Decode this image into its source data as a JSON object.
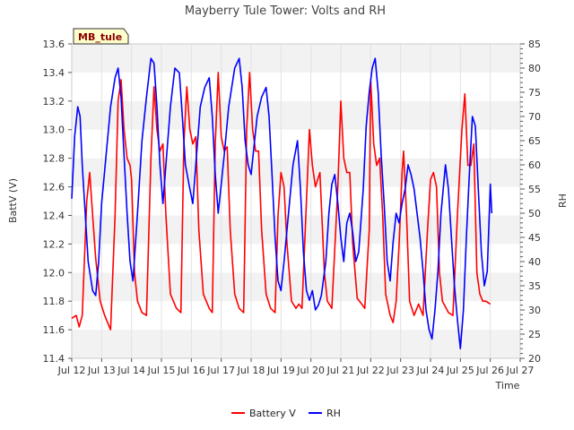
{
  "chart_data": {
    "type": "line",
    "title": "Mayberry Tule Tower: Volts and RH",
    "xlabel": "Time",
    "ylabel": "BattV (V)",
    "y2label": "RH",
    "station_label": "MB_tule",
    "xlim": [
      12,
      27
    ],
    "ylim": [
      11.4,
      13.6
    ],
    "y2lim": [
      20,
      85
    ],
    "x_ticks": [
      {
        "value": 12,
        "label": "Jul 12"
      },
      {
        "value": 13,
        "label": "Jul 13"
      },
      {
        "value": 14,
        "label": "Jul 14"
      },
      {
        "value": 15,
        "label": "Jul 15"
      },
      {
        "value": 16,
        "label": "Jul 16"
      },
      {
        "value": 17,
        "label": "Jul 17"
      },
      {
        "value": 18,
        "label": "Jul 18"
      },
      {
        "value": 19,
        "label": "Jul 19"
      },
      {
        "value": 20,
        "label": "Jul 20"
      },
      {
        "value": 21,
        "label": "Jul 21"
      },
      {
        "value": 22,
        "label": "Jul 22"
      },
      {
        "value": 23,
        "label": "Jul 23"
      },
      {
        "value": 24,
        "label": "Jul 24"
      },
      {
        "value": 25,
        "label": "Jul 25"
      },
      {
        "value": 26,
        "label": "Jul 26"
      },
      {
        "value": 27,
        "label": "Jul 27"
      }
    ],
    "y_ticks": [
      "11.4",
      "11.6",
      "11.8",
      "12.0",
      "12.2",
      "12.4",
      "12.6",
      "12.8",
      "13.0",
      "13.2",
      "13.4",
      "13.6"
    ],
    "y2_ticks": [
      "20",
      "25",
      "30",
      "35",
      "40",
      "45",
      "50",
      "55",
      "60",
      "65",
      "70",
      "75",
      "80",
      "85"
    ],
    "series": [
      {
        "name": "Battery V",
        "axis": "left",
        "color": "#ff0000",
        "points": [
          [
            12.0,
            11.68
          ],
          [
            12.15,
            11.7
          ],
          [
            12.25,
            11.62
          ],
          [
            12.35,
            11.7
          ],
          [
            12.5,
            12.5
          ],
          [
            12.6,
            12.7
          ],
          [
            12.7,
            12.4
          ],
          [
            12.8,
            12.1
          ],
          [
            12.95,
            11.8
          ],
          [
            13.1,
            11.7
          ],
          [
            13.2,
            11.65
          ],
          [
            13.3,
            11.6
          ],
          [
            13.45,
            12.4
          ],
          [
            13.55,
            13.2
          ],
          [
            13.65,
            13.35
          ],
          [
            13.75,
            13.0
          ],
          [
            13.85,
            12.8
          ],
          [
            13.95,
            12.75
          ],
          [
            14.0,
            12.65
          ],
          [
            14.1,
            12.0
          ],
          [
            14.2,
            11.8
          ],
          [
            14.35,
            11.72
          ],
          [
            14.5,
            11.7
          ],
          [
            14.65,
            12.8
          ],
          [
            14.75,
            13.3
          ],
          [
            14.85,
            13.0
          ],
          [
            14.95,
            12.85
          ],
          [
            15.05,
            12.9
          ],
          [
            15.15,
            12.4
          ],
          [
            15.3,
            11.85
          ],
          [
            15.5,
            11.75
          ],
          [
            15.65,
            11.72
          ],
          [
            15.75,
            12.9
          ],
          [
            15.85,
            13.3
          ],
          [
            15.95,
            13.0
          ],
          [
            16.05,
            12.9
          ],
          [
            16.15,
            12.95
          ],
          [
            16.25,
            12.3
          ],
          [
            16.4,
            11.85
          ],
          [
            16.6,
            11.75
          ],
          [
            16.7,
            11.72
          ],
          [
            16.8,
            12.9
          ],
          [
            16.9,
            13.4
          ],
          [
            17.0,
            12.95
          ],
          [
            17.1,
            12.85
          ],
          [
            17.2,
            12.88
          ],
          [
            17.3,
            12.3
          ],
          [
            17.45,
            11.85
          ],
          [
            17.6,
            11.75
          ],
          [
            17.75,
            11.72
          ],
          [
            17.85,
            13.0
          ],
          [
            17.95,
            13.4
          ],
          [
            18.05,
            13.0
          ],
          [
            18.15,
            12.85
          ],
          [
            18.25,
            12.85
          ],
          [
            18.35,
            12.3
          ],
          [
            18.5,
            11.85
          ],
          [
            18.65,
            11.75
          ],
          [
            18.8,
            11.72
          ],
          [
            18.9,
            12.4
          ],
          [
            19.0,
            12.7
          ],
          [
            19.1,
            12.6
          ],
          [
            19.2,
            12.2
          ],
          [
            19.35,
            11.8
          ],
          [
            19.5,
            11.75
          ],
          [
            19.6,
            11.78
          ],
          [
            19.7,
            11.75
          ],
          [
            19.85,
            12.5
          ],
          [
            19.95,
            13.0
          ],
          [
            20.05,
            12.75
          ],
          [
            20.15,
            12.6
          ],
          [
            20.3,
            12.7
          ],
          [
            20.45,
            12.0
          ],
          [
            20.55,
            11.8
          ],
          [
            20.7,
            11.75
          ],
          [
            20.9,
            12.6
          ],
          [
            21.0,
            13.2
          ],
          [
            21.1,
            12.8
          ],
          [
            21.2,
            12.7
          ],
          [
            21.3,
            12.7
          ],
          [
            21.4,
            12.2
          ],
          [
            21.55,
            11.82
          ],
          [
            21.7,
            11.78
          ],
          [
            21.8,
            11.75
          ],
          [
            21.95,
            12.3
          ],
          [
            22.0,
            13.35
          ],
          [
            22.1,
            12.9
          ],
          [
            22.2,
            12.75
          ],
          [
            22.3,
            12.8
          ],
          [
            22.4,
            12.4
          ],
          [
            22.5,
            11.85
          ],
          [
            22.65,
            11.7
          ],
          [
            22.75,
            11.65
          ],
          [
            22.85,
            11.8
          ],
          [
            22.95,
            12.2
          ],
          [
            23.05,
            12.7
          ],
          [
            23.1,
            12.85
          ],
          [
            23.2,
            12.4
          ],
          [
            23.3,
            11.8
          ],
          [
            23.45,
            11.7
          ],
          [
            23.6,
            11.78
          ],
          [
            23.75,
            11.7
          ],
          [
            23.9,
            12.3
          ],
          [
            24.0,
            12.65
          ],
          [
            24.1,
            12.7
          ],
          [
            24.2,
            12.6
          ],
          [
            24.3,
            12.0
          ],
          [
            24.4,
            11.8
          ],
          [
            24.6,
            11.72
          ],
          [
            24.75,
            11.7
          ],
          [
            24.9,
            12.4
          ],
          [
            25.05,
            13.0
          ],
          [
            25.15,
            13.25
          ],
          [
            25.25,
            12.75
          ],
          [
            25.35,
            12.75
          ],
          [
            25.45,
            12.9
          ],
          [
            25.55,
            12.0
          ],
          [
            25.65,
            11.85
          ],
          [
            25.75,
            11.8
          ],
          [
            25.85,
            11.8
          ],
          [
            26.0,
            11.78
          ]
        ]
      },
      {
        "name": "RH",
        "axis": "right",
        "color": "#0000ff",
        "points": [
          [
            12.0,
            53
          ],
          [
            12.1,
            66
          ],
          [
            12.2,
            72
          ],
          [
            12.28,
            70
          ],
          [
            12.35,
            60
          ],
          [
            12.45,
            50
          ],
          [
            12.55,
            40
          ],
          [
            12.7,
            34
          ],
          [
            12.8,
            33
          ],
          [
            12.9,
            40
          ],
          [
            13.0,
            52
          ],
          [
            13.15,
            62
          ],
          [
            13.3,
            72
          ],
          [
            13.45,
            78
          ],
          [
            13.55,
            80
          ],
          [
            13.65,
            74
          ],
          [
            13.75,
            62
          ],
          [
            13.85,
            50
          ],
          [
            13.95,
            40
          ],
          [
            14.05,
            36
          ],
          [
            14.2,
            50
          ],
          [
            14.35,
            65
          ],
          [
            14.5,
            74
          ],
          [
            14.65,
            82
          ],
          [
            14.75,
            81
          ],
          [
            14.85,
            72
          ],
          [
            14.95,
            60
          ],
          [
            15.05,
            52
          ],
          [
            15.15,
            60
          ],
          [
            15.3,
            72
          ],
          [
            15.45,
            80
          ],
          [
            15.6,
            79
          ],
          [
            15.7,
            70
          ],
          [
            15.8,
            60
          ],
          [
            15.95,
            55
          ],
          [
            16.05,
            52
          ],
          [
            16.15,
            60
          ],
          [
            16.3,
            72
          ],
          [
            16.45,
            76
          ],
          [
            16.6,
            78
          ],
          [
            16.7,
            70
          ],
          [
            16.8,
            58
          ],
          [
            16.9,
            50
          ],
          [
            17.0,
            56
          ],
          [
            17.1,
            62
          ],
          [
            17.25,
            72
          ],
          [
            17.45,
            80
          ],
          [
            17.6,
            82
          ],
          [
            17.7,
            76
          ],
          [
            17.8,
            65
          ],
          [
            17.9,
            60
          ],
          [
            18.0,
            58
          ],
          [
            18.1,
            64
          ],
          [
            18.2,
            70
          ],
          [
            18.35,
            74
          ],
          [
            18.5,
            76
          ],
          [
            18.6,
            70
          ],
          [
            18.7,
            58
          ],
          [
            18.8,
            45
          ],
          [
            18.9,
            36
          ],
          [
            19.0,
            34
          ],
          [
            19.1,
            40
          ],
          [
            19.25,
            50
          ],
          [
            19.4,
            60
          ],
          [
            19.55,
            65
          ],
          [
            19.65,
            55
          ],
          [
            19.75,
            42
          ],
          [
            19.85,
            34
          ],
          [
            19.95,
            32
          ],
          [
            20.05,
            34
          ],
          [
            20.15,
            30
          ],
          [
            20.25,
            31
          ],
          [
            20.35,
            33
          ],
          [
            20.5,
            40
          ],
          [
            20.6,
            50
          ],
          [
            20.7,
            56
          ],
          [
            20.8,
            58
          ],
          [
            20.9,
            52
          ],
          [
            21.0,
            45
          ],
          [
            21.1,
            40
          ],
          [
            21.2,
            48
          ],
          [
            21.3,
            50
          ],
          [
            21.4,
            46
          ],
          [
            21.5,
            40
          ],
          [
            21.6,
            42
          ],
          [
            21.75,
            55
          ],
          [
            21.85,
            68
          ],
          [
            21.95,
            75
          ],
          [
            22.05,
            80
          ],
          [
            22.15,
            82
          ],
          [
            22.25,
            75
          ],
          [
            22.35,
            62
          ],
          [
            22.45,
            52
          ],
          [
            22.55,
            40
          ],
          [
            22.65,
            36
          ],
          [
            22.75,
            44
          ],
          [
            22.85,
            50
          ],
          [
            22.95,
            48
          ],
          [
            23.05,
            52
          ],
          [
            23.15,
            55
          ],
          [
            23.25,
            60
          ],
          [
            23.35,
            58
          ],
          [
            23.45,
            55
          ],
          [
            23.55,
            50
          ],
          [
            23.65,
            45
          ],
          [
            23.75,
            38
          ],
          [
            23.85,
            30
          ],
          [
            23.95,
            26
          ],
          [
            24.05,
            24
          ],
          [
            24.15,
            30
          ],
          [
            24.25,
            38
          ],
          [
            24.35,
            50
          ],
          [
            24.5,
            60
          ],
          [
            24.6,
            55
          ],
          [
            24.7,
            45
          ],
          [
            24.8,
            35
          ],
          [
            24.9,
            28
          ],
          [
            25.0,
            22
          ],
          [
            25.1,
            30
          ],
          [
            25.2,
            45
          ],
          [
            25.3,
            58
          ],
          [
            25.4,
            70
          ],
          [
            25.5,
            68
          ],
          [
            25.6,
            55
          ],
          [
            25.7,
            42
          ],
          [
            25.8,
            35
          ],
          [
            25.9,
            38
          ],
          [
            26.0,
            56
          ],
          [
            26.05,
            50
          ]
        ]
      }
    ],
    "legend": {
      "placement": "bottom-center",
      "entries": [
        {
          "label": "Battery V",
          "color": "#ff0000"
        },
        {
          "label": "RH",
          "color": "#0000ff"
        }
      ]
    },
    "grid": true
  }
}
